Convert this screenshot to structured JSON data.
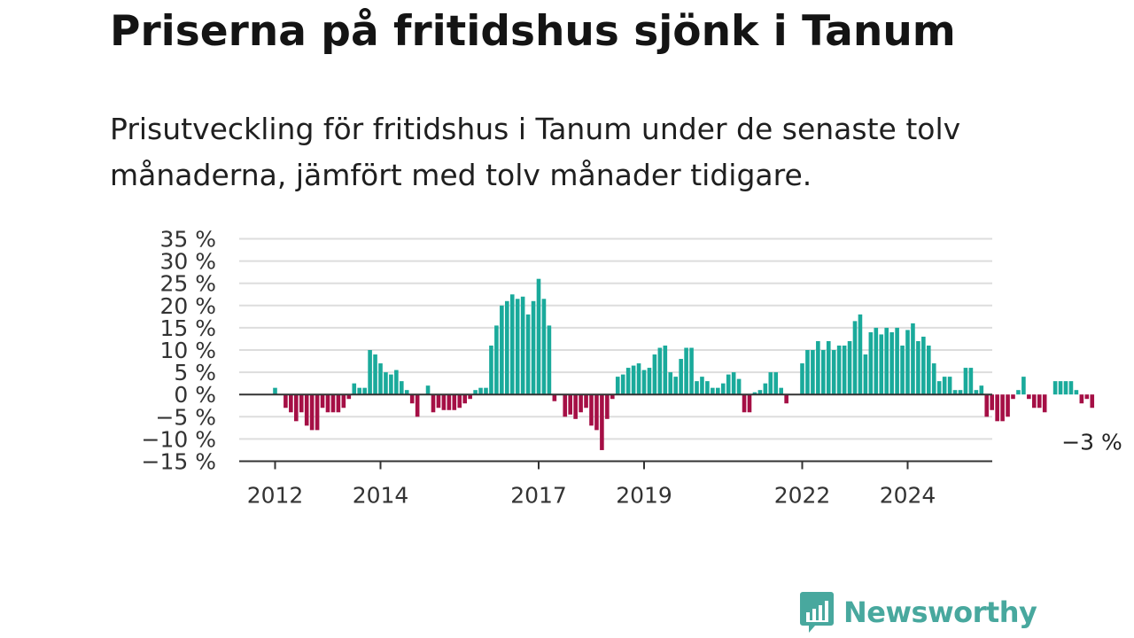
{
  "title": "Priserna på fritidshus sjönk i Tanum",
  "subtitle": "Prisutveckling för fritidshus i Tanum under de senaste tolv månaderna, jämfört med tolv månader tidigare.",
  "brand": {
    "name": "Newsworthy",
    "icon": "newsworthy-logo-icon",
    "color": "#48a89e"
  },
  "chart_data": {
    "type": "bar",
    "xlabel": "",
    "ylabel": "",
    "ylim": [
      -15,
      35
    ],
    "yticks": [
      35,
      30,
      25,
      20,
      15,
      10,
      5,
      0,
      -5,
      -10,
      -15
    ],
    "ytick_labels": [
      "35 %",
      "30 %",
      "25 %",
      "20 %",
      "15 %",
      "10 %",
      "5 %",
      "0 %",
      "−5 %",
      "−10 %",
      "−15 %"
    ],
    "xtick_labels": [
      "2012",
      "2014",
      "2017",
      "2019",
      "2022",
      "2024"
    ],
    "xtick_indices": [
      0,
      20,
      50,
      70,
      100,
      120
    ],
    "start": "2012-01",
    "end": "2024-12",
    "grid": true,
    "colors": {
      "positive": "#1aaa9b",
      "negative": "#a50f45",
      "grid": "#dddddd",
      "axis": "#333333"
    },
    "last_value_label": "−3 %",
    "series": [
      {
        "values": [
          1.5,
          0,
          -3,
          -4,
          -6,
          -4,
          -7,
          -8,
          -8,
          -3,
          -4,
          -4,
          -4,
          -3,
          -1,
          2.5,
          1.5,
          1.5,
          10,
          9,
          7,
          5,
          4.5,
          5.5,
          3,
          1,
          -2,
          -5,
          0,
          2,
          -4,
          -3,
          -3.5,
          -3.5,
          -3.5,
          -3,
          -2,
          -1,
          1,
          1.5,
          1.5,
          11,
          15.5,
          20,
          21,
          22.5,
          21.5,
          22,
          18,
          21,
          26,
          21.5,
          15.5,
          -1.5,
          0,
          -5,
          -4.5,
          -5.5,
          -4,
          -3,
          -7,
          -8,
          -12.5,
          -5.5,
          -1,
          4,
          4.5,
          6,
          6.5,
          7,
          5.5,
          6,
          9,
          10.5,
          11,
          5,
          4,
          8,
          10.5,
          10.5,
          3,
          4,
          3,
          1.5,
          1.5,
          2.5,
          4.5,
          5,
          3.5,
          -4,
          -4,
          0.5,
          1,
          2.5,
          5,
          5,
          1.5,
          -2,
          0,
          0,
          7,
          10,
          10,
          12,
          10,
          12,
          10,
          11,
          11,
          12,
          16.5,
          18,
          9,
          14,
          15,
          13.5,
          15,
          14,
          15,
          11,
          14.5,
          16,
          12,
          13,
          11,
          7,
          3,
          4,
          4,
          1,
          1,
          6,
          6,
          1,
          2,
          -5,
          -3.5,
          -6,
          -6,
          -5,
          -1,
          1,
          4,
          -1,
          -3,
          -3,
          -4,
          0,
          3,
          3,
          3,
          3,
          1,
          -2,
          -1,
          -3
        ]
      }
    ]
  }
}
